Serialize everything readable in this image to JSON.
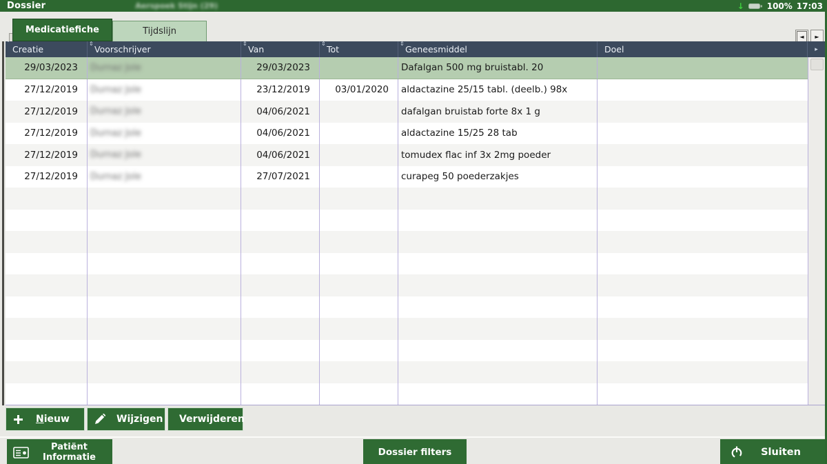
{
  "titlebar": {
    "app_title": "Dossier",
    "patient_name_redacted": "Aerspoek Stijn (29)",
    "battery_percent": "100%",
    "time": "17:03",
    "download_arrow": "↓"
  },
  "tabs": [
    {
      "label": "Medicatiefiche",
      "active": true
    },
    {
      "label": "Tijdslijn",
      "active": false
    }
  ],
  "tab_scroll": {
    "left": "◄",
    "right": "►"
  },
  "table": {
    "columns": [
      {
        "key": "creatie",
        "label": "Creatie",
        "sort_glyph": "ˇ"
      },
      {
        "key": "voorschrijver",
        "label": "Voorschrijver",
        "sort_glyph": "⇕"
      },
      {
        "key": "van",
        "label": "Van",
        "sort_glyph": "⇕"
      },
      {
        "key": "tot",
        "label": "Tot",
        "sort_glyph": "⇕"
      },
      {
        "key": "geneesmiddel",
        "label": "Geneesmiddel",
        "sort_glyph": "⇕"
      },
      {
        "key": "doel",
        "label": "Doel",
        "sort_glyph": ""
      },
      {
        "key": "more",
        "label": "",
        "sort_glyph": "▸"
      }
    ],
    "rows": [
      {
        "creatie": "29/03/2023",
        "voorschrijver": "Durnaz Jole",
        "van": "29/03/2023",
        "tot": "",
        "geneesmiddel": "Dafalgan 500 mg bruistabl. 20",
        "doel": "",
        "selected": true
      },
      {
        "creatie": "27/12/2019",
        "voorschrijver": "Durnaz Jole",
        "van": "23/12/2019",
        "tot": "03/01/2020",
        "geneesmiddel": "aldactazine 25/15 tabl. (deelb.) 98x",
        "doel": "",
        "selected": false
      },
      {
        "creatie": "27/12/2019",
        "voorschrijver": "Durnaz Jole",
        "van": "04/06/2021",
        "tot": "",
        "geneesmiddel": "dafalgan bruistab forte 8x 1 g",
        "doel": "",
        "selected": false
      },
      {
        "creatie": "27/12/2019",
        "voorschrijver": "Durnaz Jole",
        "van": "04/06/2021",
        "tot": "",
        "geneesmiddel": "aldactazine 15/25 28 tab",
        "doel": "",
        "selected": false
      },
      {
        "creatie": "27/12/2019",
        "voorschrijver": "Durnaz Jole",
        "van": "04/06/2021",
        "tot": "",
        "geneesmiddel": "tomudex flac inf 3x 2mg poeder",
        "doel": "",
        "selected": false
      },
      {
        "creatie": "27/12/2019",
        "voorschrijver": "Durnaz Jole",
        "van": "27/07/2021",
        "tot": "",
        "geneesmiddel": "curapeg 50 poederzakjes",
        "doel": "",
        "selected": false
      }
    ],
    "total_rows": 16
  },
  "actions": [
    {
      "label": "Nieuw",
      "icon": "plus-icon",
      "hotkey_underline": true
    },
    {
      "label": "Wijzigen",
      "icon": "pencil-icon",
      "hotkey_underline": false
    },
    {
      "label": "Verwijderen",
      "icon": "trash-icon",
      "hotkey_underline": false
    }
  ],
  "footer": {
    "patient_info_line1": "Patiënt",
    "patient_info_line2": "Informatie",
    "dossier_filters": "Dossier filters",
    "sluiten": "Sluiten"
  },
  "colors": {
    "brand_green": "#2f6b33",
    "titlebar_green": "#2d6830",
    "inactive_tab_green": "#bdd6bc",
    "selected_row_green": "#b5cdb0",
    "header_slate": "#3c4a5d",
    "grid_lavender": "#b9b0dd",
    "stripe_gray": "#f4f4f2",
    "battery_arrow_green": "#3fd13f"
  }
}
